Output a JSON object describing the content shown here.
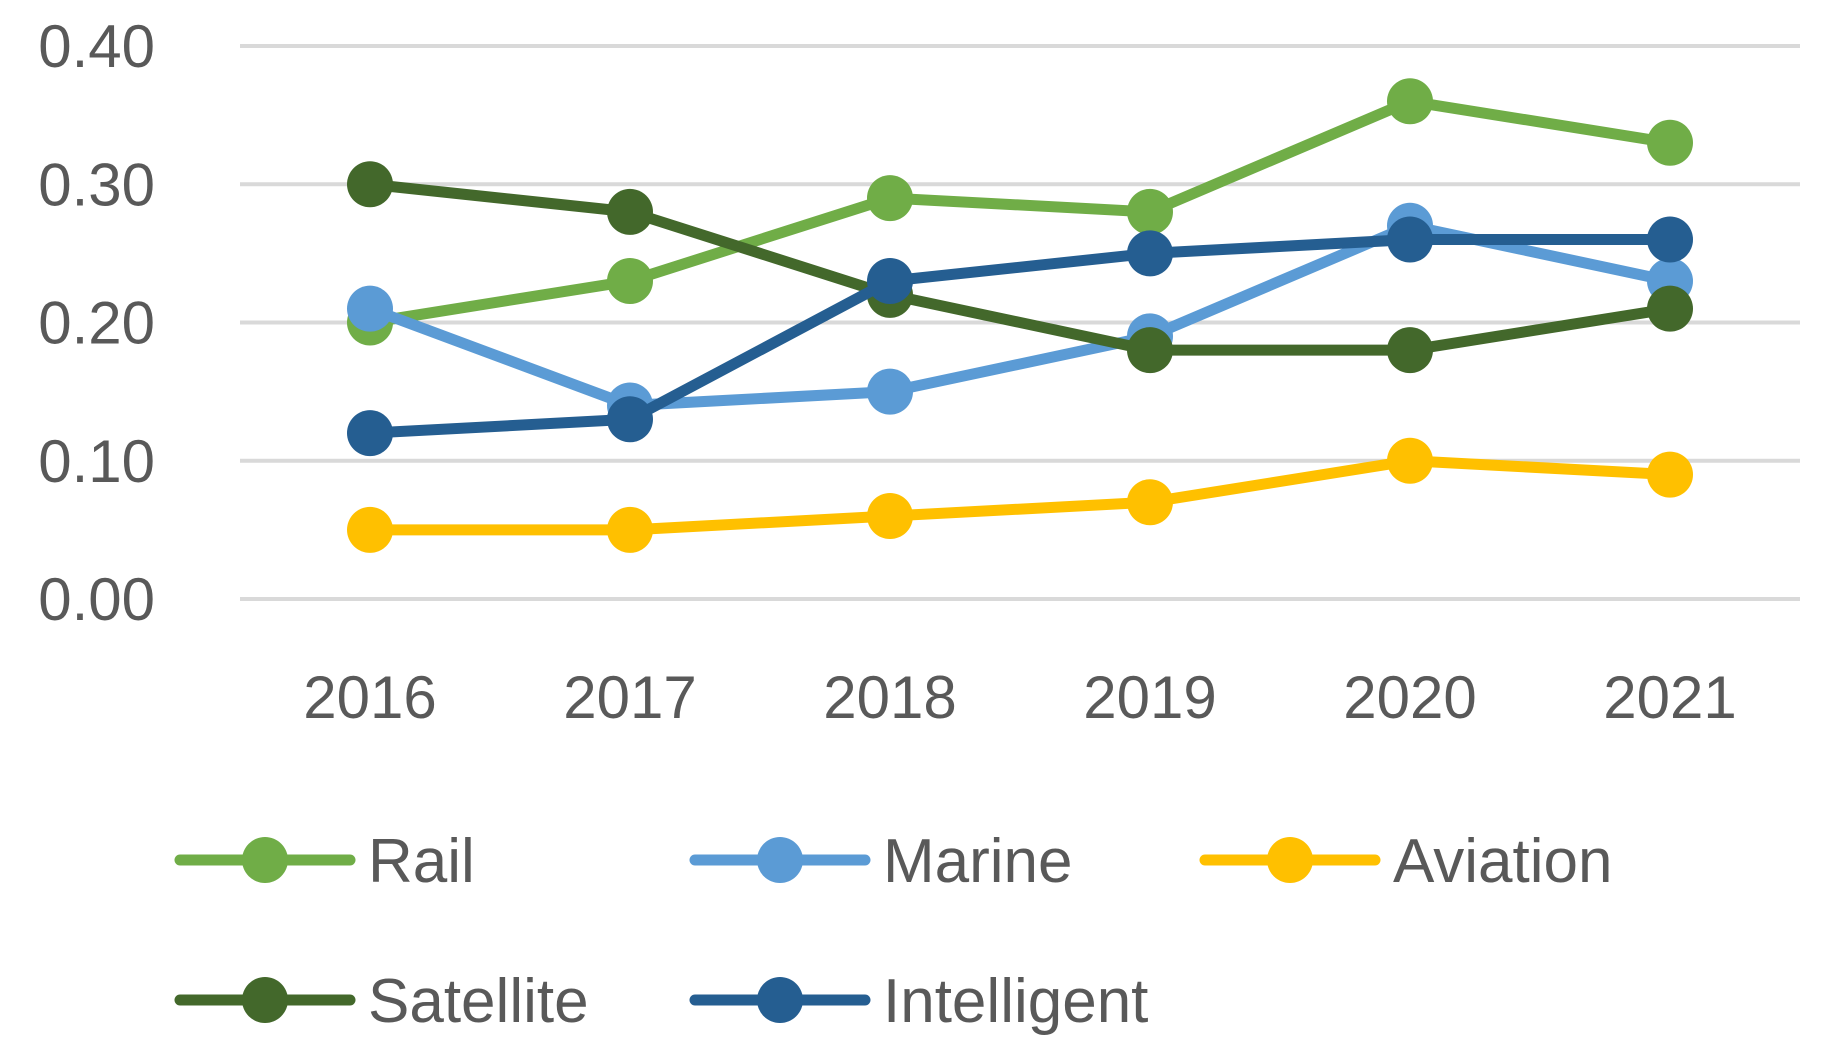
{
  "chart_data": {
    "type": "line",
    "title": "",
    "xlabel": "",
    "ylabel": "",
    "categories": [
      "2016",
      "2017",
      "2018",
      "2019",
      "2020",
      "2021"
    ],
    "ylim": [
      0,
      0.4
    ],
    "yticks": [
      "0.00",
      "0.10",
      "0.20",
      "0.30",
      "0.40"
    ],
    "grid": true,
    "legend_position": "bottom",
    "series": [
      {
        "name": "Rail",
        "color": "#70AD47",
        "values": [
          0.2,
          0.23,
          0.29,
          0.28,
          0.36,
          0.33
        ]
      },
      {
        "name": "Marine",
        "color": "#5B9BD5",
        "values": [
          0.21,
          0.14,
          0.15,
          0.19,
          0.27,
          0.23
        ]
      },
      {
        "name": "Aviation",
        "color": "#FFC000",
        "values": [
          0.05,
          0.05,
          0.06,
          0.07,
          0.1,
          0.09
        ]
      },
      {
        "name": "Satellite",
        "color": "#43682B",
        "values": [
          0.3,
          0.28,
          0.22,
          0.18,
          0.18,
          0.21
        ]
      },
      {
        "name": "Intelligent",
        "color": "#255E91",
        "values": [
          0.12,
          0.13,
          0.23,
          0.25,
          0.26,
          0.26
        ]
      }
    ]
  },
  "colors": {
    "grid": "#D9D9D9",
    "text": "#595959"
  }
}
